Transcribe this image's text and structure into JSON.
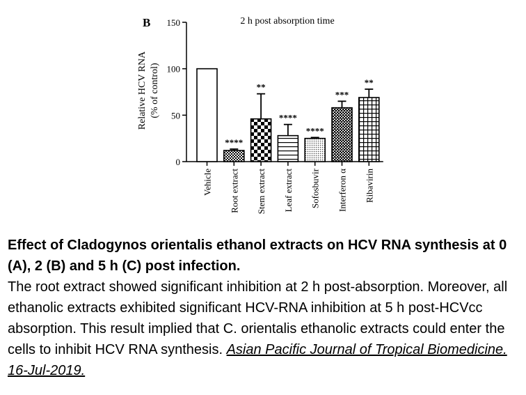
{
  "chart_data": {
    "type": "bar",
    "panel_label": "B",
    "title": "2 h post absorption time",
    "ylabel": [
      "Relative HCV RNA",
      "(% of control)"
    ],
    "xlabel": "",
    "ylim": [
      0,
      150
    ],
    "yticks": [
      0,
      50,
      100,
      150
    ],
    "grid": false,
    "legend": "none",
    "categories": [
      "Vehicle",
      "Root extract",
      "Stem extract",
      "Leaf extract",
      "Sofosbuvir",
      "Interferon α",
      "Ribavirin"
    ],
    "values": [
      100,
      12,
      46,
      28,
      25,
      58,
      69
    ],
    "error": [
      0,
      1.5,
      27,
      12,
      1,
      7,
      9
    ],
    "significance": [
      "",
      "****",
      "**",
      "****",
      "****",
      "***",
      "**"
    ],
    "patterns": [
      "white",
      "dense-check",
      "checker",
      "horizontal-lines",
      "dots",
      "dense-check-dark",
      "grid"
    ]
  },
  "caption": {
    "title": "Effect of Cladogynos orientalis ethanol extracts on HCV RNA synthesis at 0 (A), 2 (B) and 5 h (C) post infection.",
    "body": "The root extract showed significant inhibition at 2 h post-absorption. Moreover, all ethanolic extracts exhibited significant HCV-RNA inhibition at 5 h post-HCVcc absorption. This result implied that C. orientalis ethanolic extracts could enter the cells to inhibit HCV RNA synthesis.",
    "citation": "Asian Pacific Journal of Tropical Biomedicine. 16-Jul-2019."
  }
}
